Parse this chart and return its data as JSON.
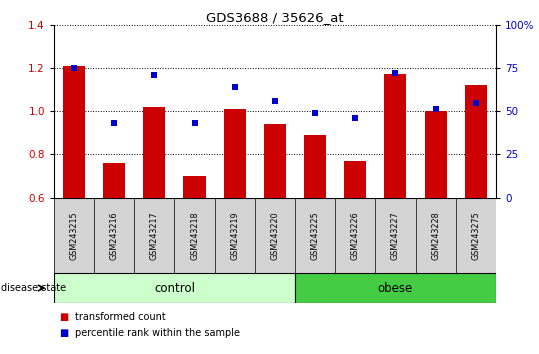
{
  "title": "GDS3688 / 35626_at",
  "samples": [
    "GSM243215",
    "GSM243216",
    "GSM243217",
    "GSM243218",
    "GSM243219",
    "GSM243220",
    "GSM243225",
    "GSM243226",
    "GSM243227",
    "GSM243228",
    "GSM243275"
  ],
  "transformed_count": [
    1.21,
    0.76,
    1.02,
    0.7,
    1.01,
    0.94,
    0.89,
    0.77,
    1.17,
    1.0,
    1.12
  ],
  "percentile_rank": [
    75,
    43,
    71,
    43,
    64,
    56,
    49,
    46,
    72,
    51,
    55
  ],
  "bar_color": "#cc0000",
  "dot_color": "#0000cc",
  "ylim_left": [
    0.6,
    1.4
  ],
  "ylim_right": [
    0,
    100
  ],
  "yticks_left": [
    0.6,
    0.8,
    1.0,
    1.2,
    1.4
  ],
  "yticks_right": [
    0,
    25,
    50,
    75,
    100
  ],
  "ytick_labels_right": [
    "0",
    "25",
    "50",
    "75",
    "100%"
  ],
  "control_samples": [
    "GSM243215",
    "GSM243216",
    "GSM243217",
    "GSM243218",
    "GSM243219",
    "GSM243220"
  ],
  "obese_samples": [
    "GSM243225",
    "GSM243226",
    "GSM243227",
    "GSM243228",
    "GSM243275"
  ],
  "control_label": "control",
  "obese_label": "obese",
  "disease_state_label": "disease state",
  "legend_bar_label": "transformed count",
  "legend_dot_label": "percentile rank within the sample",
  "control_color": "#ccffcc",
  "obese_color": "#44cc44",
  "ticklabel_area_color": "#d4d4d4",
  "grid_color": "#000000"
}
